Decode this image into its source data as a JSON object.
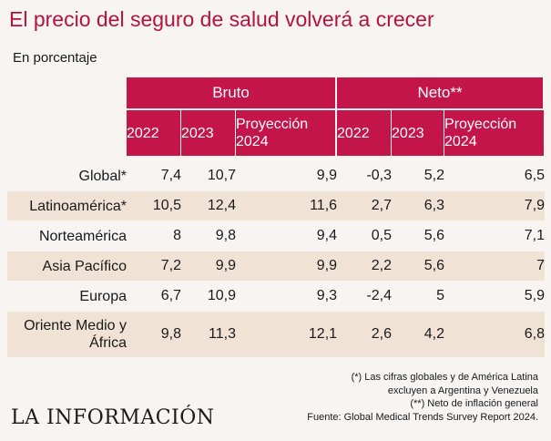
{
  "title": "El precio del seguro de salud volverá a crecer",
  "subtitle": "En porcentaje",
  "logo": "LA INFORMACIÓN",
  "notes": [
    "(*) Las cifras globales y de América Latina",
    "excluyen a Argentina y Venezuela",
    "(**) Neto de inflación general",
    "Fuente: Global Medical Trends Survey Report 2024."
  ],
  "colors": {
    "header": "#c4154a",
    "shade": "#f0e2d5",
    "title": "#b5123f"
  },
  "chart_data": {
    "type": "table",
    "groups": [
      {
        "name": "Bruto",
        "columns": [
          "2022",
          "2023",
          "Proyección 2024"
        ]
      },
      {
        "name": "Neto**",
        "columns": [
          "2022",
          "2023",
          "Proyección 2024"
        ]
      }
    ],
    "rows": [
      {
        "label": "Global*",
        "values": [
          "7,4",
          "10,7",
          "9,9",
          "-0,3",
          "5,2",
          "6,5"
        ]
      },
      {
        "label": "Latinoamérica*",
        "values": [
          "10,5",
          "12,4",
          "11,6",
          "2,7",
          "6,3",
          "7,9"
        ]
      },
      {
        "label": "Norteamérica",
        "values": [
          "8",
          "9,8",
          "9,4",
          "0,5",
          "5,6",
          "7,1"
        ]
      },
      {
        "label": "Asia Pacífico",
        "values": [
          "7,2",
          "9,9",
          "9,9",
          "2,2",
          "5,6",
          "7"
        ]
      },
      {
        "label": "Europa",
        "values": [
          "6,7",
          "10,9",
          "9,3",
          "-2,4",
          "5",
          "5,9"
        ]
      },
      {
        "label": "Oriente Medio y África",
        "values": [
          "9,8",
          "11,3",
          "12,1",
          "2,6",
          "4,2",
          "6,8"
        ]
      }
    ]
  }
}
